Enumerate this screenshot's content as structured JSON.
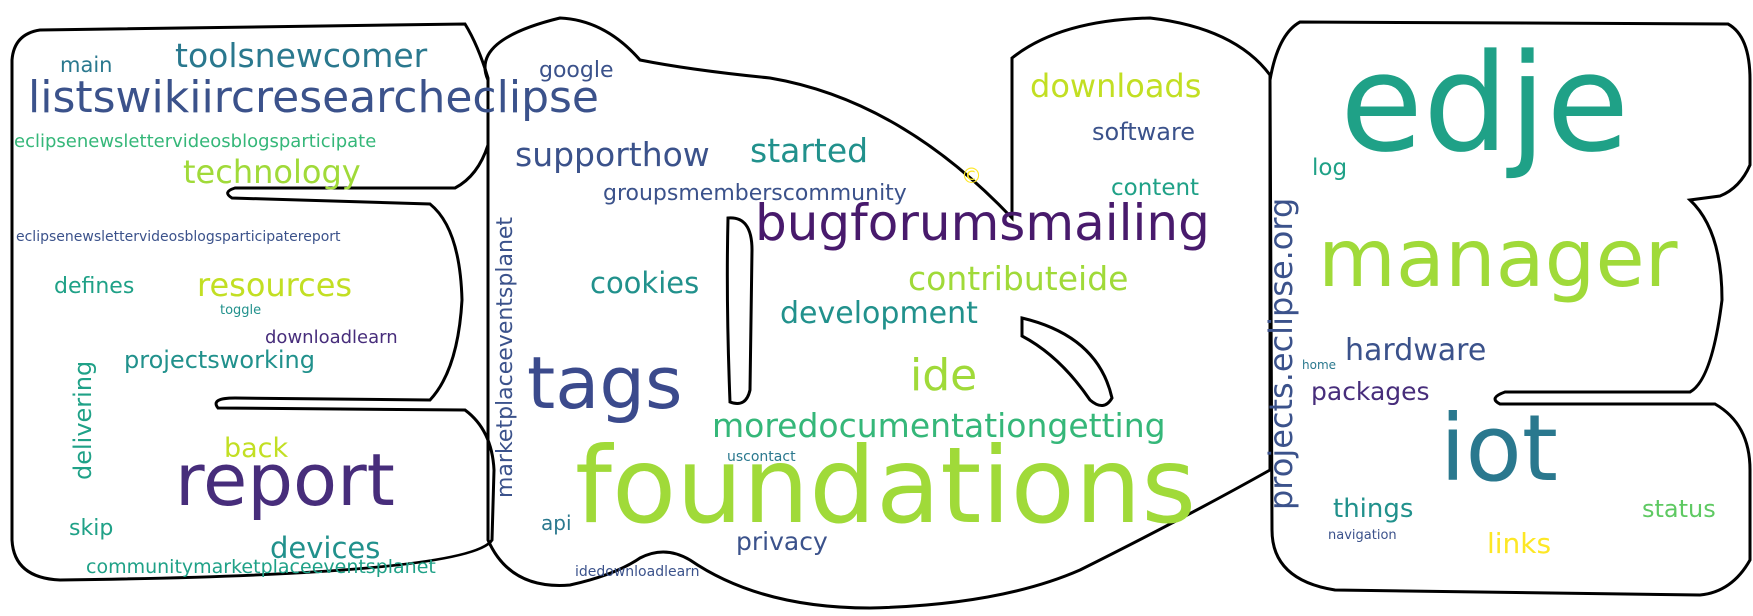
{
  "colors": {
    "background": "#ffffff",
    "outline": "#000000",
    "palette": [
      "#440154",
      "#3b528b",
      "#21918c",
      "#1fa187",
      "#35b779",
      "#5ec962",
      "#a0da39",
      "#c2df23",
      "#fde725"
    ]
  },
  "words": [
    {
      "text": "edje",
      "color": "#1fa187"
    },
    {
      "text": "foundations",
      "color": "#a0da39"
    },
    {
      "text": "manager",
      "color": "#a0da39"
    },
    {
      "text": "iot",
      "color": "#2a788e"
    },
    {
      "text": "report",
      "color": "#472d7b"
    },
    {
      "text": "tags",
      "color": "#3b4a8c"
    },
    {
      "text": "bugforumsmailing",
      "color": "#481a6c"
    },
    {
      "text": "listswikiircresearcheclipse",
      "color": "#3b528b"
    },
    {
      "text": "projects.eclipse.org",
      "color": "#3b528b"
    },
    {
      "text": "toolsnewcomer",
      "color": "#2a788e"
    },
    {
      "text": "ide",
      "color": "#a0da39"
    },
    {
      "text": "moredocumentationgetting",
      "color": "#35b779"
    },
    {
      "text": "contributeide",
      "color": "#a0da39"
    },
    {
      "text": "development",
      "color": "#21918c"
    },
    {
      "text": "started",
      "color": "#21918c"
    },
    {
      "text": "supporthow",
      "color": "#3b528b"
    },
    {
      "text": "downloads",
      "color": "#c2df23"
    },
    {
      "text": "technology",
      "color": "#a0da39"
    },
    {
      "text": "resources",
      "color": "#c2df23"
    },
    {
      "text": "cookies",
      "color": "#21918c"
    },
    {
      "text": "hardware",
      "color": "#3b528b"
    },
    {
      "text": "devices",
      "color": "#21918c"
    },
    {
      "text": "marketplaceeventsplanet",
      "color": "#3b528b"
    },
    {
      "text": "delivering",
      "color": "#1fa187"
    },
    {
      "text": "things",
      "color": "#21918c"
    },
    {
      "text": "links",
      "color": "#fde725"
    },
    {
      "text": "status",
      "color": "#5ec962"
    },
    {
      "text": "packages",
      "color": "#472d7b"
    },
    {
      "text": "projectsworking",
      "color": "#21918c"
    },
    {
      "text": "privacy",
      "color": "#3b528b"
    },
    {
      "text": "back",
      "color": "#c2df23"
    },
    {
      "text": "groupsmemberscommunity",
      "color": "#3b528b"
    },
    {
      "text": "software",
      "color": "#3b528b"
    },
    {
      "text": "content",
      "color": "#1fa187"
    },
    {
      "text": "defines",
      "color": "#1fa187"
    },
    {
      "text": "skip",
      "color": "#1fa187"
    },
    {
      "text": "log",
      "color": "#1fa187"
    },
    {
      "text": "communitymarketplaceeventsplanet",
      "color": "#1fa187"
    },
    {
      "text": "eclipsenewslettervideosblogsparticipate",
      "color": "#35b779"
    },
    {
      "text": "google",
      "color": "#3b528b"
    },
    {
      "text": "main",
      "color": "#2a788e"
    },
    {
      "text": "downloadlearn",
      "color": "#472d7b"
    },
    {
      "text": "api",
      "color": "#2a788e"
    },
    {
      "text": "©",
      "color": "#fde725"
    },
    {
      "text": "eclipsenewslettervideosblogsparticipatereport",
      "color": "#3b528b"
    },
    {
      "text": "idedownloadlearn",
      "color": "#3b528b"
    },
    {
      "text": "uscontact",
      "color": "#2a788e"
    },
    {
      "text": "toggle",
      "color": "#21918c"
    },
    {
      "text": "navigation",
      "color": "#3b528b"
    },
    {
      "text": "home",
      "color": "#2a788e"
    }
  ]
}
